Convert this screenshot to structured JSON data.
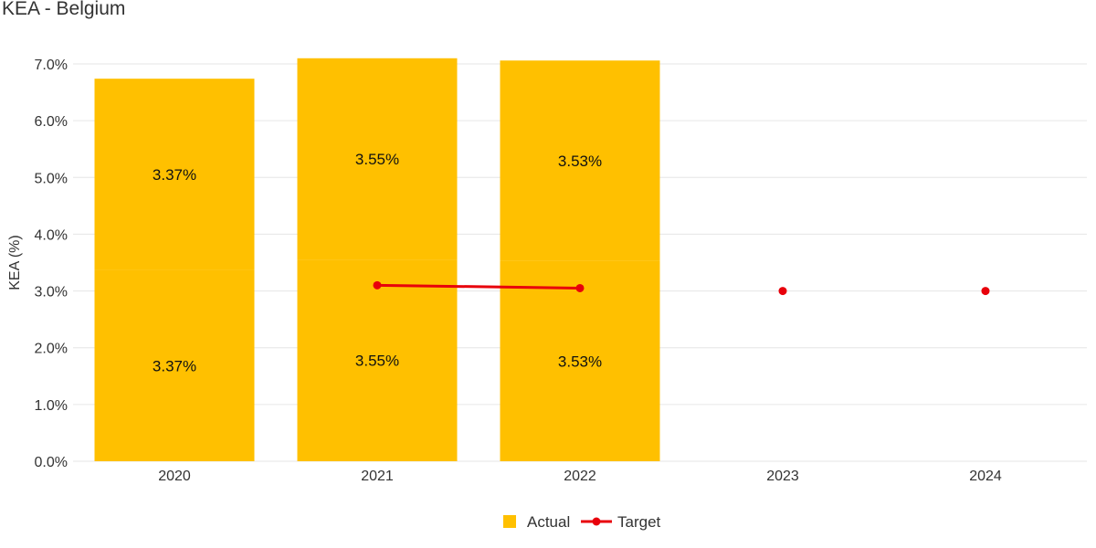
{
  "title": "KEA - Belgium",
  "chart_data": {
    "type": "bar",
    "title": "KEA - Belgium",
    "ylabel": "KEA (%)",
    "xlabel": "",
    "ylim": [
      0,
      7.0
    ],
    "ytick_values": [
      0,
      1,
      2,
      3,
      4,
      5,
      6,
      7
    ],
    "ytick_labels": [
      "0.0%",
      "1.0%",
      "2.0%",
      "3.0%",
      "4.0%",
      "5.0%",
      "6.0%",
      "7.0%"
    ],
    "categories": [
      "2020",
      "2021",
      "2022",
      "2023",
      "2024"
    ],
    "stacked": true,
    "series": [
      {
        "name": "Actual",
        "kind": "bar",
        "color": "#FFC000",
        "segments": [
          [
            3.37,
            3.37
          ],
          [
            3.55,
            3.55
          ],
          [
            3.53,
            3.53
          ],
          [],
          []
        ],
        "labels": [
          [
            "3.37%",
            "3.37%"
          ],
          [
            "3.55%",
            "3.55%"
          ],
          [
            "3.53%",
            "3.53%"
          ],
          [],
          []
        ]
      },
      {
        "name": "Target",
        "kind": "line",
        "color": "#E8000B",
        "values": [
          null,
          3.1,
          3.05,
          3.0,
          3.0
        ]
      }
    ],
    "grid": true,
    "legend_position": "bottom-center"
  }
}
